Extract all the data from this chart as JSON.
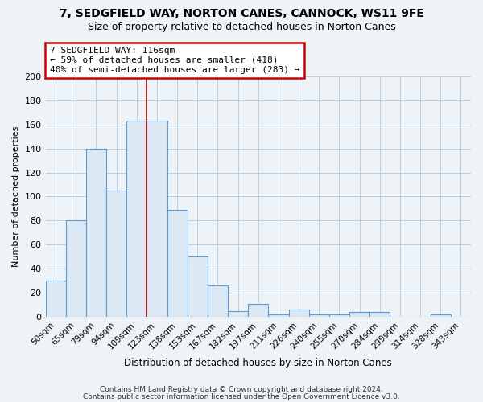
{
  "title": "7, SEDGFIELD WAY, NORTON CANES, CANNOCK, WS11 9FE",
  "subtitle": "Size of property relative to detached houses in Norton Canes",
  "xlabel": "Distribution of detached houses by size in Norton Canes",
  "ylabel": "Number of detached properties",
  "bar_color": "#dce9f5",
  "bar_edge_color": "#5b9bd5",
  "categories": [
    "50sqm",
    "65sqm",
    "79sqm",
    "94sqm",
    "109sqm",
    "123sqm",
    "138sqm",
    "153sqm",
    "167sqm",
    "182sqm",
    "197sqm",
    "211sqm",
    "226sqm",
    "240sqm",
    "255sqm",
    "270sqm",
    "284sqm",
    "299sqm",
    "314sqm",
    "328sqm",
    "343sqm"
  ],
  "values": [
    30,
    80,
    140,
    105,
    163,
    163,
    89,
    50,
    26,
    5,
    11,
    2,
    6,
    2,
    2,
    4,
    4,
    0,
    0,
    2,
    0
  ],
  "ylim": [
    0,
    200
  ],
  "yticks": [
    0,
    20,
    40,
    60,
    80,
    100,
    120,
    140,
    160,
    180,
    200
  ],
  "annotation_line1": "7 SEDGFIELD WAY: 116sqm",
  "annotation_line2": "← 59% of detached houses are smaller (418)",
  "annotation_line3": "40% of semi-detached houses are larger (283) →",
  "annotation_box_color": "#ffffff",
  "annotation_box_edge": "#cc0000",
  "line_color": "#aa0000",
  "footer_line1": "Contains HM Land Registry data © Crown copyright and database right 2024.",
  "footer_line2": "Contains public sector information licensed under the Open Government Licence v3.0.",
  "bg_color": "#eef3f8",
  "grid_color": "#b8cfe0",
  "title_fontsize": 10,
  "subtitle_fontsize": 9
}
